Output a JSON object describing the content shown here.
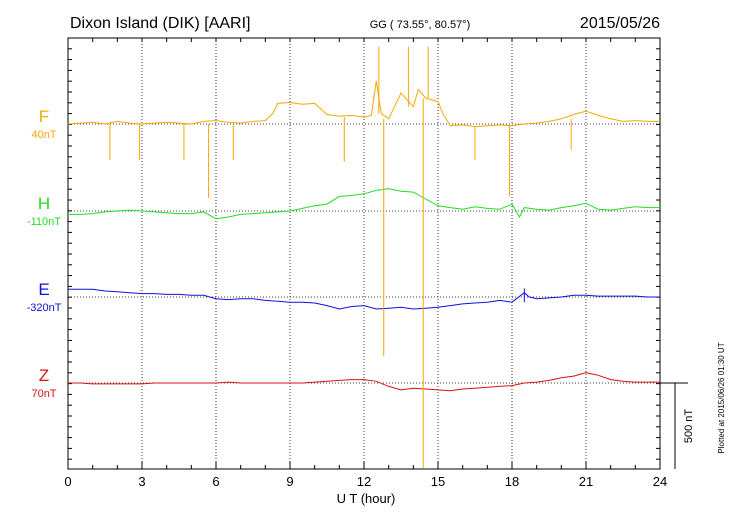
{
  "header": {
    "station": "Dixon Island (DIK)  [AARI]",
    "coords": "GG ( 73.55°,  80.57°)",
    "date": "2015/05/26"
  },
  "footer_note": "Plotted at 2015/06/26 01:30 UT",
  "scale_bar": {
    "label": "500 nT",
    "value_nt": 500
  },
  "colors": {
    "F": "#f5a800",
    "H": "#22dd22",
    "E": "#1010dd",
    "Z": "#dd1010",
    "grid": "#000000"
  },
  "chart_data": {
    "type": "line",
    "xlabel": "U T (hour)",
    "xlim": [
      0,
      24
    ],
    "x_ticks": [
      0,
      3,
      6,
      9,
      12,
      15,
      18,
      21,
      24
    ],
    "nt_per_division": 500,
    "series": [
      {
        "name": "F",
        "baseline_label": "40nT",
        "points": [
          [
            0.0,
            0
          ],
          [
            0.5,
            5
          ],
          [
            1.0,
            10
          ],
          [
            1.5,
            0
          ],
          [
            2.0,
            15
          ],
          [
            2.5,
            5
          ],
          [
            3.0,
            0
          ],
          [
            3.5,
            5
          ],
          [
            4.0,
            10
          ],
          [
            4.5,
            5
          ],
          [
            5.0,
            0
          ],
          [
            5.5,
            15
          ],
          [
            6.0,
            20
          ],
          [
            6.5,
            10
          ],
          [
            7.0,
            5
          ],
          [
            7.5,
            15
          ],
          [
            8.0,
            20
          ],
          [
            8.3,
            60
          ],
          [
            8.5,
            120
          ],
          [
            9.0,
            125
          ],
          [
            9.5,
            115
          ],
          [
            10.0,
            120
          ],
          [
            10.5,
            55
          ],
          [
            11.0,
            45
          ],
          [
            11.5,
            50
          ],
          [
            12.0,
            40
          ],
          [
            12.3,
            50
          ],
          [
            12.5,
            250
          ],
          [
            12.7,
            60
          ],
          [
            13.0,
            30
          ],
          [
            13.5,
            180
          ],
          [
            14.0,
            100
          ],
          [
            14.2,
            200
          ],
          [
            14.5,
            150
          ],
          [
            15.0,
            130
          ],
          [
            15.2,
            60
          ],
          [
            15.5,
            -10
          ],
          [
            16.0,
            -5
          ],
          [
            16.5,
            -15
          ],
          [
            17.0,
            -10
          ],
          [
            17.5,
            -5
          ],
          [
            18.0,
            -10
          ],
          [
            18.5,
            0
          ],
          [
            19.0,
            5
          ],
          [
            19.5,
            15
          ],
          [
            20.0,
            30
          ],
          [
            20.5,
            55
          ],
          [
            21.0,
            75
          ],
          [
            21.5,
            50
          ],
          [
            22.0,
            30
          ],
          [
            22.5,
            15
          ],
          [
            23.0,
            20
          ],
          [
            23.5,
            15
          ],
          [
            24.0,
            15
          ]
        ]
      },
      {
        "name": "H",
        "baseline_label": "-110nT",
        "points": [
          [
            0.0,
            -20
          ],
          [
            0.5,
            -20
          ],
          [
            1.0,
            -15
          ],
          [
            1.5,
            -5
          ],
          [
            2.0,
            0
          ],
          [
            2.5,
            5
          ],
          [
            3.0,
            0
          ],
          [
            3.5,
            -5
          ],
          [
            4.0,
            -10
          ],
          [
            4.5,
            -15
          ],
          [
            5.0,
            -15
          ],
          [
            5.5,
            -5
          ],
          [
            6.0,
            -45
          ],
          [
            6.5,
            -35
          ],
          [
            7.0,
            -20
          ],
          [
            7.5,
            -15
          ],
          [
            8.0,
            -10
          ],
          [
            8.5,
            -5
          ],
          [
            9.0,
            0
          ],
          [
            9.5,
            15
          ],
          [
            10.0,
            30
          ],
          [
            10.5,
            40
          ],
          [
            11.0,
            85
          ],
          [
            11.5,
            90
          ],
          [
            12.0,
            100
          ],
          [
            12.5,
            120
          ],
          [
            13.0,
            130
          ],
          [
            13.5,
            115
          ],
          [
            14.0,
            110
          ],
          [
            14.5,
            70
          ],
          [
            15.0,
            30
          ],
          [
            15.5,
            20
          ],
          [
            16.0,
            10
          ],
          [
            16.5,
            25
          ],
          [
            17.0,
            15
          ],
          [
            17.5,
            10
          ],
          [
            18.0,
            40
          ],
          [
            18.3,
            -35
          ],
          [
            18.5,
            20
          ],
          [
            19.0,
            10
          ],
          [
            19.5,
            5
          ],
          [
            20.0,
            20
          ],
          [
            20.5,
            30
          ],
          [
            21.0,
            45
          ],
          [
            21.5,
            10
          ],
          [
            22.0,
            5
          ],
          [
            22.5,
            15
          ],
          [
            23.0,
            25
          ],
          [
            23.5,
            20
          ],
          [
            24.0,
            20
          ]
        ]
      },
      {
        "name": "E",
        "baseline_label": "-320nT",
        "points": [
          [
            0.0,
            45
          ],
          [
            0.5,
            45
          ],
          [
            1.0,
            45
          ],
          [
            1.5,
            35
          ],
          [
            2.0,
            30
          ],
          [
            2.5,
            25
          ],
          [
            3.0,
            20
          ],
          [
            3.5,
            20
          ],
          [
            4.0,
            15
          ],
          [
            4.5,
            15
          ],
          [
            5.0,
            10
          ],
          [
            5.5,
            10
          ],
          [
            6.0,
            -10
          ],
          [
            6.5,
            -15
          ],
          [
            7.0,
            -10
          ],
          [
            7.5,
            -10
          ],
          [
            8.0,
            -20
          ],
          [
            8.5,
            -25
          ],
          [
            9.0,
            -30
          ],
          [
            9.5,
            -30
          ],
          [
            10.0,
            -35
          ],
          [
            10.5,
            -50
          ],
          [
            11.0,
            -70
          ],
          [
            11.5,
            -55
          ],
          [
            12.0,
            -50
          ],
          [
            12.5,
            -70
          ],
          [
            13.0,
            -65
          ],
          [
            13.5,
            -60
          ],
          [
            14.0,
            -70
          ],
          [
            14.5,
            -65
          ],
          [
            15.0,
            -60
          ],
          [
            15.5,
            -50
          ],
          [
            16.0,
            -40
          ],
          [
            16.5,
            -35
          ],
          [
            17.0,
            -30
          ],
          [
            17.5,
            -20
          ],
          [
            18.0,
            -30
          ],
          [
            18.5,
            25
          ],
          [
            18.7,
            0
          ],
          [
            19.0,
            -10
          ],
          [
            19.5,
            -5
          ],
          [
            20.0,
            0
          ],
          [
            20.5,
            10
          ],
          [
            21.0,
            10
          ],
          [
            21.5,
            5
          ],
          [
            22.0,
            5
          ],
          [
            22.5,
            5
          ],
          [
            23.0,
            5
          ],
          [
            23.5,
            0
          ],
          [
            24.0,
            0
          ]
        ]
      },
      {
        "name": "Z",
        "baseline_label": "70nT",
        "points": [
          [
            0.0,
            0
          ],
          [
            0.5,
            0
          ],
          [
            1.0,
            -5
          ],
          [
            1.5,
            -5
          ],
          [
            2.0,
            -5
          ],
          [
            2.5,
            -5
          ],
          [
            3.0,
            -5
          ],
          [
            3.5,
            0
          ],
          [
            4.0,
            0
          ],
          [
            4.5,
            0
          ],
          [
            5.0,
            0
          ],
          [
            5.5,
            0
          ],
          [
            6.0,
            0
          ],
          [
            6.5,
            5
          ],
          [
            7.0,
            0
          ],
          [
            7.5,
            0
          ],
          [
            8.0,
            0
          ],
          [
            8.5,
            0
          ],
          [
            9.0,
            0
          ],
          [
            9.5,
            0
          ],
          [
            10.0,
            5
          ],
          [
            10.5,
            10
          ],
          [
            11.0,
            15
          ],
          [
            11.5,
            20
          ],
          [
            12.0,
            20
          ],
          [
            12.5,
            10
          ],
          [
            13.0,
            -20
          ],
          [
            13.5,
            -40
          ],
          [
            14.0,
            -30
          ],
          [
            14.5,
            -35
          ],
          [
            15.0,
            -40
          ],
          [
            15.5,
            -45
          ],
          [
            16.0,
            -35
          ],
          [
            16.5,
            -30
          ],
          [
            17.0,
            -25
          ],
          [
            17.5,
            -20
          ],
          [
            18.0,
            -15
          ],
          [
            18.5,
            0
          ],
          [
            19.0,
            5
          ],
          [
            19.5,
            15
          ],
          [
            20.0,
            30
          ],
          [
            20.5,
            40
          ],
          [
            21.0,
            60
          ],
          [
            21.5,
            45
          ],
          [
            22.0,
            20
          ],
          [
            22.5,
            10
          ],
          [
            23.0,
            5
          ],
          [
            23.5,
            5
          ],
          [
            24.0,
            5
          ]
        ]
      }
    ],
    "spikes": [
      {
        "series": "F",
        "x": 1.7,
        "y": 0,
        "y2": -210
      },
      {
        "series": "F",
        "x": 2.9,
        "y": 0,
        "y2": -210
      },
      {
        "series": "F",
        "x": 4.7,
        "y": 0,
        "y2": -210
      },
      {
        "series": "F",
        "x": 5.7,
        "y": 0,
        "y2": -430
      },
      {
        "series": "F",
        "x": 6.7,
        "y": 0,
        "y2": -210
      },
      {
        "series": "F",
        "x": 11.2,
        "y": 40,
        "y2": -220
      },
      {
        "series": "F",
        "x": 12.8,
        "y": 30,
        "y2": -1350
      },
      {
        "series": "F",
        "x": 14.4,
        "y": 150,
        "y2": -2000
      },
      {
        "series": "F",
        "x": 16.5,
        "y": -15,
        "y2": -210
      },
      {
        "series": "F",
        "x": 17.9,
        "y": -10,
        "y2": -420
      },
      {
        "series": "F",
        "x": 20.4,
        "y": 30,
        "y2": -150
      },
      {
        "series": "F",
        "x": 12.6,
        "y": 60,
        "y2": 450
      },
      {
        "series": "F",
        "x": 13.8,
        "y": 100,
        "y2": 450
      },
      {
        "series": "F",
        "x": 14.6,
        "y": 150,
        "y2": 450
      },
      {
        "series": "E",
        "x": 18.5,
        "y": -30,
        "y2": 50
      }
    ]
  }
}
